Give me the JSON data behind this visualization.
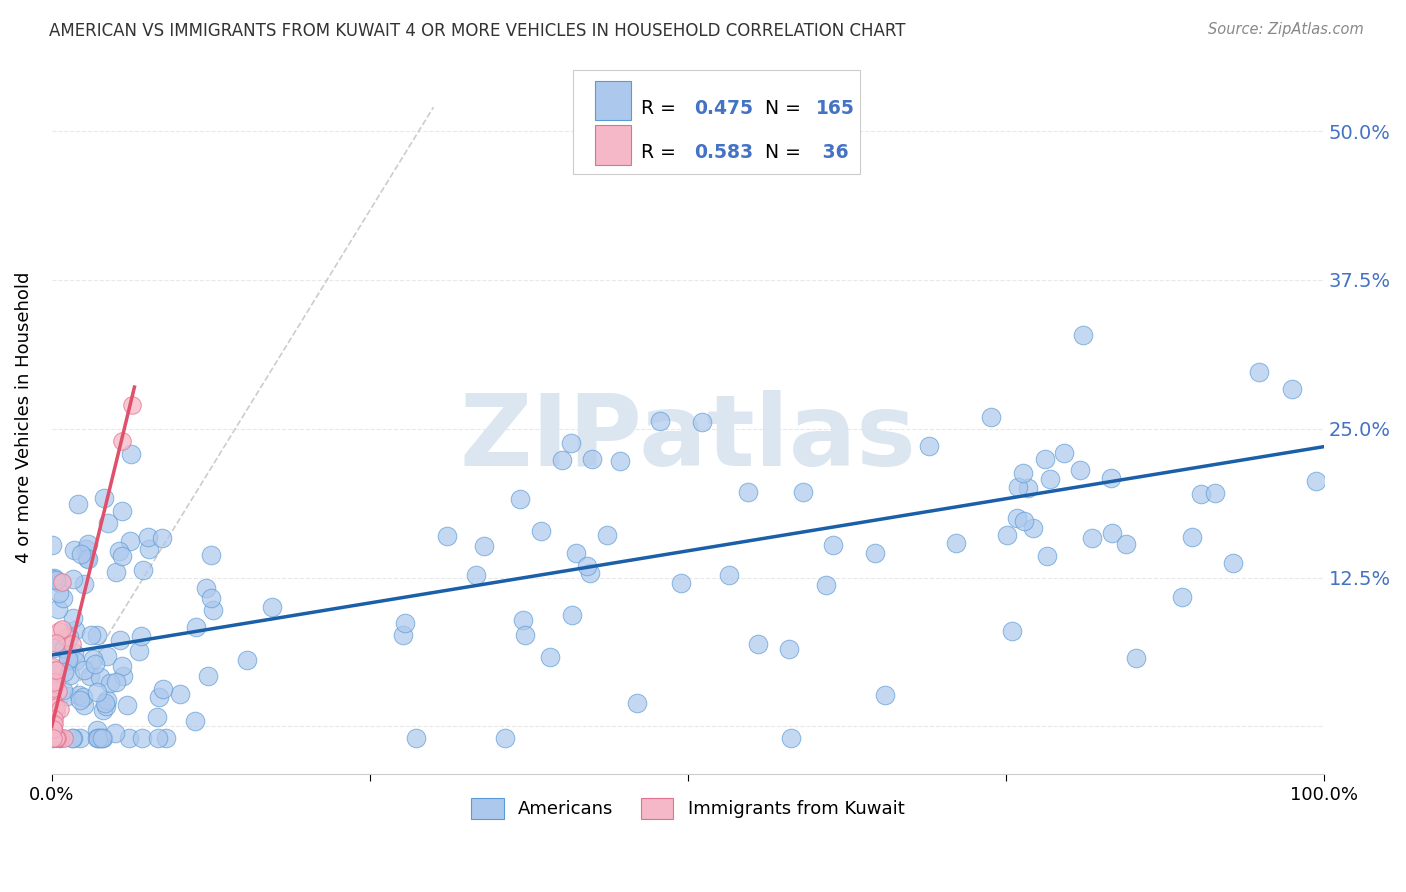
{
  "title": "AMERICAN VS IMMIGRANTS FROM KUWAIT 4 OR MORE VEHICLES IN HOUSEHOLD CORRELATION CHART",
  "source": "Source: ZipAtlas.com",
  "ylabel": "4 or more Vehicles in Household",
  "ytick_values": [
    0.0,
    0.125,
    0.25,
    0.375,
    0.5
  ],
  "ytick_labels": [
    "",
    "12.5%",
    "25.0%",
    "37.5%",
    "50.0%"
  ],
  "xlim": [
    0.0,
    1.0
  ],
  "ylim": [
    -0.04,
    0.56
  ],
  "american_color": "#adc8ed",
  "american_edge_color": "#5b9bd5",
  "kuwait_color": "#f4b8c8",
  "kuwait_edge_color": "#e07090",
  "trendline_american_color": "#1a5fa8",
  "trendline_kuwait_color": "#e0506a",
  "trendline_dashed_color": "#c0c0c0",
  "watermark_color": "#dce6f0",
  "background_color": "#ffffff",
  "grid_color": "#e8e8e8",
  "american_trend_x": [
    0.0,
    1.0
  ],
  "american_trend_y": [
    0.06,
    0.235
  ],
  "kuwait_trend_x": [
    0.0,
    0.065
  ],
  "kuwait_trend_y": [
    0.0,
    0.285
  ],
  "dashed_trend_x": [
    0.0,
    0.3
  ],
  "dashed_trend_y": [
    0.0,
    0.52
  ]
}
